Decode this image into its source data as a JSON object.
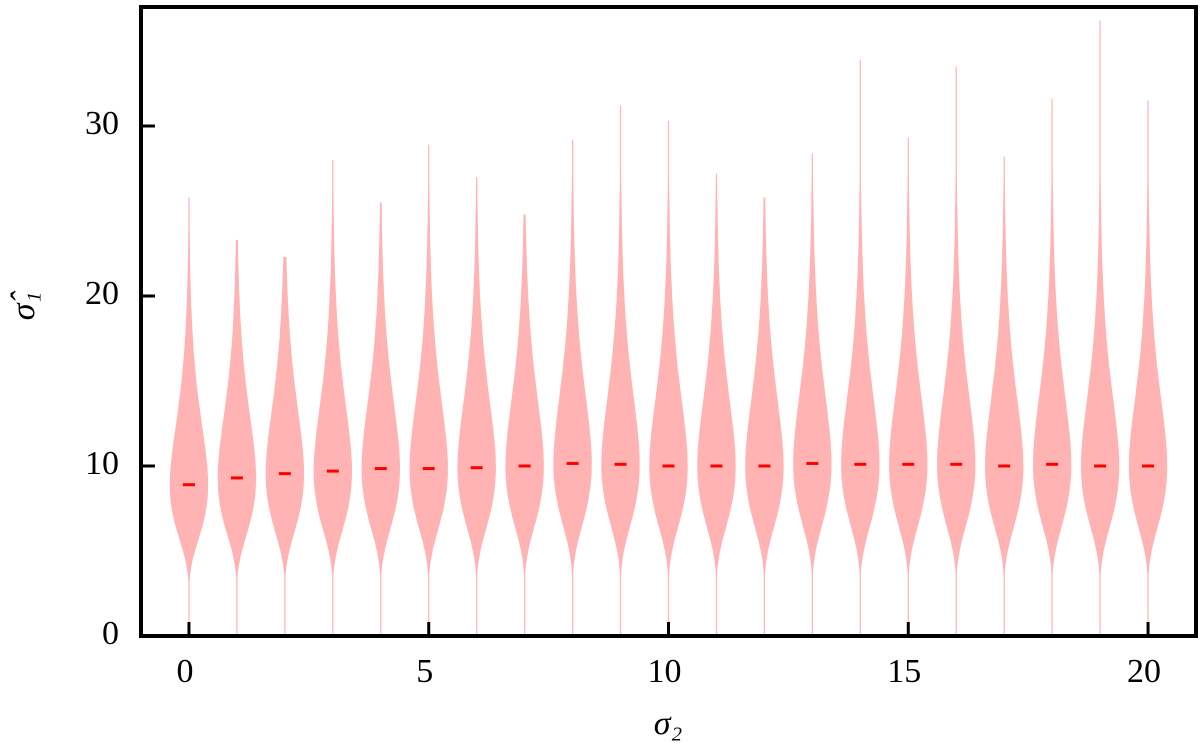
{
  "chart_data": {
    "type": "violin",
    "x_label": "σ₂",
    "y_label": "σ̂₁",
    "x": [
      0,
      1,
      2,
      3,
      4,
      5,
      6,
      7,
      8,
      9,
      10,
      11,
      12,
      13,
      14,
      15,
      16,
      17,
      18,
      19,
      20
    ],
    "min": [
      0,
      0,
      0,
      0,
      0,
      0,
      0,
      0,
      0,
      0,
      0,
      0,
      0,
      0,
      0,
      0,
      0,
      0,
      0,
      0,
      0
    ],
    "median": [
      8.9,
      9.3,
      9.55,
      9.7,
      9.85,
      9.85,
      9.9,
      10.0,
      10.15,
      10.1,
      10.0,
      10.0,
      10.0,
      10.15,
      10.1,
      10.1,
      10.1,
      10.0,
      10.1,
      10.0,
      10.0
    ],
    "max": [
      25.8,
      23.3,
      22.3,
      28.0,
      25.5,
      28.9,
      27.0,
      24.8,
      29.2,
      31.2,
      30.3,
      27.2,
      25.8,
      28.4,
      33.9,
      29.3,
      33.5,
      28.2,
      31.6,
      36.2,
      31.5
    ],
    "color": "#ffb3b3",
    "median_color": "#ff0000",
    "xlim": [
      -1,
      21
    ],
    "xticks": [
      0,
      5,
      10,
      15,
      20
    ],
    "ylim": [
      0,
      37
    ],
    "yticks": [
      0,
      10,
      20,
      30
    ]
  }
}
